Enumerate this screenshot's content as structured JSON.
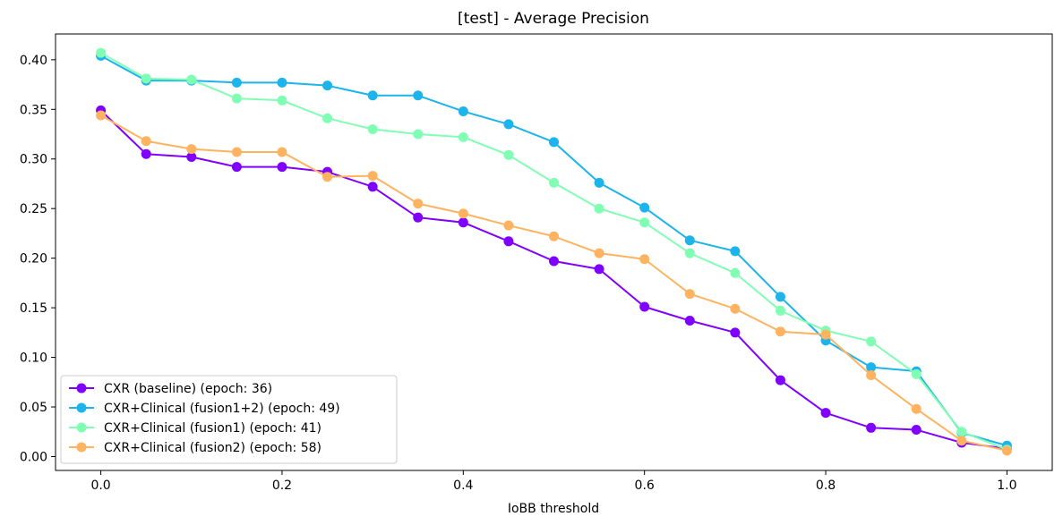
{
  "chart_data": {
    "type": "line",
    "title": "[test] - Average Precision",
    "xlabel": "IoBB threshold",
    "ylabel": "",
    "xlim": [
      -0.05,
      1.05
    ],
    "ylim": [
      -0.014,
      0.426
    ],
    "x_ticks": [
      {
        "value": 0.0,
        "label": "0.0"
      },
      {
        "value": 0.2,
        "label": "0.2"
      },
      {
        "value": 0.4,
        "label": "0.4"
      },
      {
        "value": 0.6,
        "label": "0.6"
      },
      {
        "value": 0.8,
        "label": "0.8"
      },
      {
        "value": 1.0,
        "label": "1.0"
      }
    ],
    "y_ticks": [
      {
        "value": 0.0,
        "label": "0.00"
      },
      {
        "value": 0.05,
        "label": "0.05"
      },
      {
        "value": 0.1,
        "label": "0.10"
      },
      {
        "value": 0.15,
        "label": "0.15"
      },
      {
        "value": 0.2,
        "label": "0.20"
      },
      {
        "value": 0.25,
        "label": "0.25"
      },
      {
        "value": 0.3,
        "label": "0.30"
      },
      {
        "value": 0.35,
        "label": "0.35"
      },
      {
        "value": 0.4,
        "label": "0.40"
      }
    ],
    "grid": false,
    "legend_position": "lower-left",
    "x": [
      0.0,
      0.05,
      0.1,
      0.15,
      0.2,
      0.25,
      0.3,
      0.35,
      0.4,
      0.45,
      0.5,
      0.55,
      0.6,
      0.65,
      0.7,
      0.75,
      0.8,
      0.85,
      0.9,
      0.95,
      1.0
    ],
    "series": [
      {
        "name": "CXR (baseline) (epoch: 36)",
        "color": "#8000ff",
        "values": [
          0.349,
          0.305,
          0.302,
          0.292,
          0.292,
          0.287,
          0.272,
          0.241,
          0.236,
          0.217,
          0.197,
          0.189,
          0.151,
          0.137,
          0.125,
          0.077,
          0.044,
          0.029,
          0.027,
          0.014,
          0.008
        ]
      },
      {
        "name": "CXR+Clinical (fusion1+2) (epoch: 49)",
        "color": "#1cb4eb",
        "values": [
          0.404,
          0.379,
          0.379,
          0.377,
          0.377,
          0.374,
          0.364,
          0.364,
          0.348,
          0.335,
          0.317,
          0.276,
          0.251,
          0.218,
          0.207,
          0.161,
          0.117,
          0.09,
          0.086,
          0.024,
          0.011
        ]
      },
      {
        "name": "CXR+Clinical (fusion1) (epoch: 41)",
        "color": "#80ffb4",
        "values": [
          0.407,
          0.381,
          0.38,
          0.361,
          0.359,
          0.341,
          0.33,
          0.325,
          0.322,
          0.304,
          0.276,
          0.25,
          0.236,
          0.205,
          0.185,
          0.147,
          0.127,
          0.116,
          0.083,
          0.025,
          0.007
        ]
      },
      {
        "name": "CXR+Clinical (fusion2) (epoch: 58)",
        "color": "#ffb360",
        "values": [
          0.344,
          0.318,
          0.31,
          0.307,
          0.307,
          0.282,
          0.283,
          0.255,
          0.245,
          0.233,
          0.222,
          0.205,
          0.199,
          0.164,
          0.149,
          0.126,
          0.123,
          0.082,
          0.048,
          0.016,
          0.006
        ]
      }
    ]
  }
}
